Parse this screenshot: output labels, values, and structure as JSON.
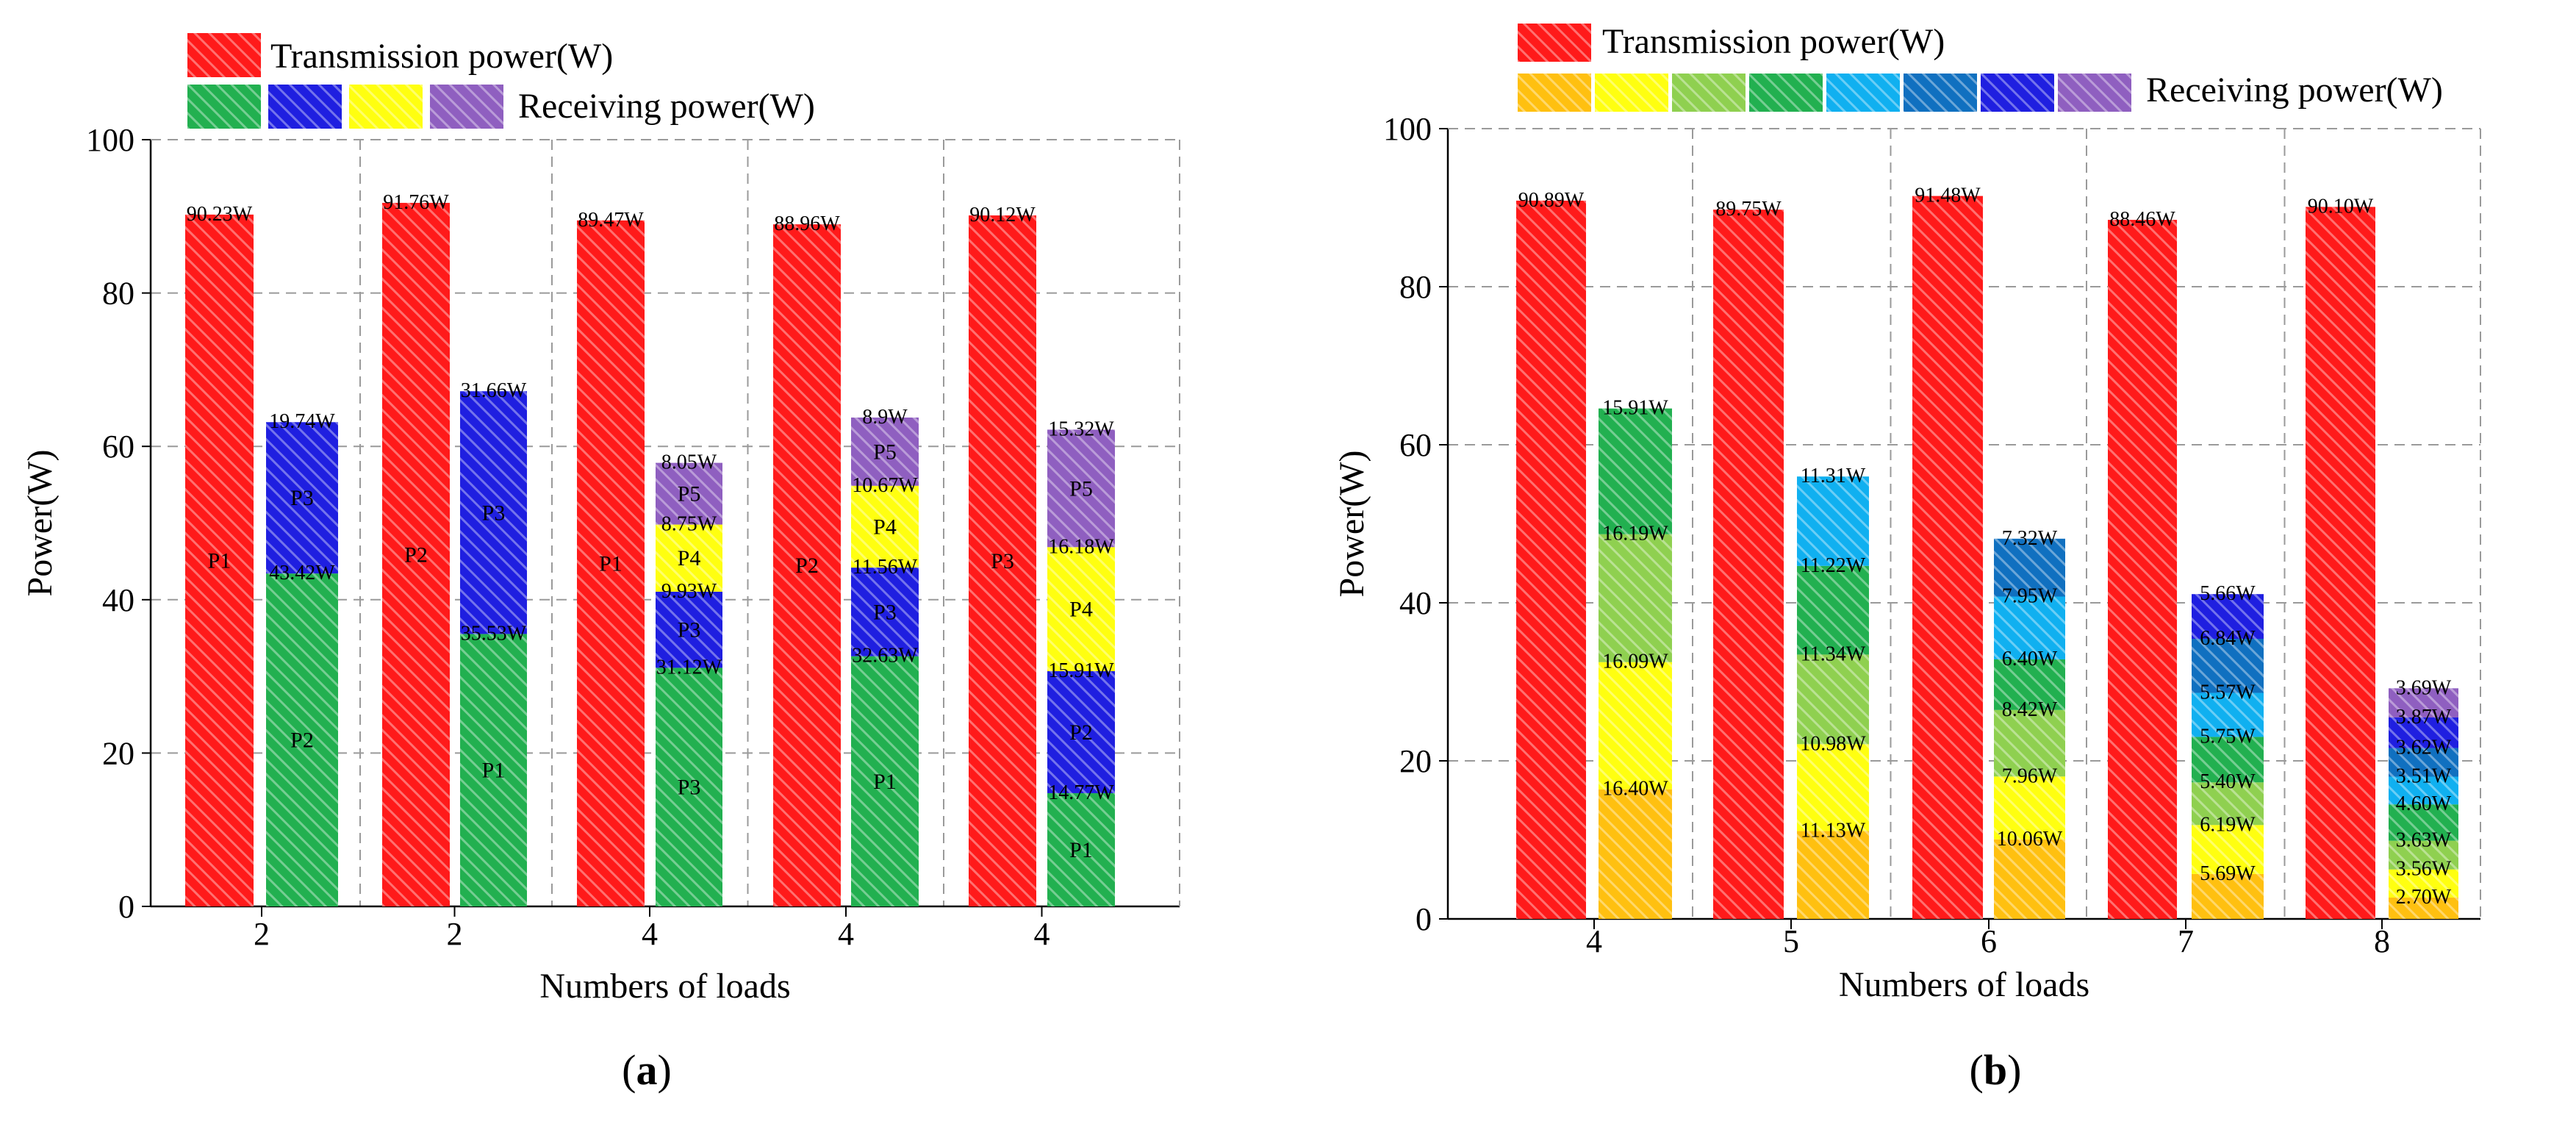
{
  "panels": [
    {
      "caption_letter": "a",
      "legend": {
        "transmission_label": "Transmission power(W)",
        "receiving_label": "Receiving power(W)",
        "receiving_swatch_colors": [
          "#22b050",
          "#1f1fe0",
          "#ffff10",
          "#8f5fc0"
        ]
      }
    },
    {
      "caption_letter": "b",
      "legend": {
        "transmission_label": "Transmission power(W)",
        "receiving_label": "Receiving power(W)",
        "receiving_swatch_colors": [
          "#ffc010",
          "#ffff10",
          "#8fd050",
          "#22b050",
          "#10b0f0",
          "#1070c0",
          "#1f1fe0",
          "#8f5fc0"
        ]
      }
    }
  ],
  "chart_data": [
    {
      "type": "bar",
      "stacked": true,
      "xlabel": "Numbers of loads",
      "ylabel": "Power(W)",
      "ylim": [
        0,
        100
      ],
      "yticks": [
        0,
        20,
        40,
        60,
        80,
        100
      ],
      "grid": true,
      "legend_position": "top-left",
      "categories": [
        "2",
        "2",
        "4",
        "4",
        "4"
      ],
      "transmission": {
        "name": "Transmission power(W)",
        "color": "#ff1a1a",
        "values": [
          90.23,
          91.76,
          89.47,
          88.96,
          90.12
        ],
        "value_labels": [
          "90.23W",
          "91.76W",
          "89.47W",
          "88.96W",
          "90.12W"
        ],
        "inner_labels": [
          "P1",
          "P2",
          "P1",
          "P2",
          "P3"
        ]
      },
      "receiving": [
        {
          "segments": [
            {
              "value": 43.42,
              "label": "43.42W",
              "inner": "P2",
              "color": "#22b050"
            },
            {
              "value": 19.74,
              "label": "19.74W",
              "inner": "P3",
              "color": "#1f1fe0"
            }
          ]
        },
        {
          "segments": [
            {
              "value": 35.53,
              "label": "35.53W",
              "inner": "P1",
              "color": "#22b050"
            },
            {
              "value": 31.66,
              "label": "31.66W",
              "inner": "P3",
              "color": "#1f1fe0"
            }
          ]
        },
        {
          "segments": [
            {
              "value": 31.12,
              "label": "31.12W",
              "inner": "P3",
              "color": "#22b050"
            },
            {
              "value": 9.93,
              "label": "9.93W",
              "inner": "P3",
              "color": "#1f1fe0"
            },
            {
              "value": 8.75,
              "label": "8.75W",
              "inner": "P4",
              "color": "#ffff10"
            },
            {
              "value": 8.05,
              "label": "8.05W",
              "inner": "P5",
              "color": "#8f5fc0"
            }
          ]
        },
        {
          "segments": [
            {
              "value": 32.63,
              "label": "32.63W",
              "inner": "P1",
              "color": "#22b050"
            },
            {
              "value": 11.56,
              "label": "11.56W",
              "inner": "P3",
              "color": "#1f1fe0"
            },
            {
              "value": 10.67,
              "label": "10.67W",
              "inner": "P4",
              "color": "#ffff10"
            },
            {
              "value": 8.9,
              "label": "8.9W",
              "inner": "P5",
              "color": "#8f5fc0"
            }
          ]
        },
        {
          "segments": [
            {
              "value": 14.77,
              "label": "14.77W",
              "inner": "P1",
              "color": "#22b050"
            },
            {
              "value": 15.91,
              "label": "15.91W",
              "inner": "P2",
              "color": "#1f1fe0"
            },
            {
              "value": 16.18,
              "label": "16.18W",
              "inner": "P4",
              "color": "#ffff10"
            },
            {
              "value": 15.32,
              "label": "15.32W",
              "inner": "P5",
              "color": "#8f5fc0"
            }
          ]
        }
      ]
    },
    {
      "type": "bar",
      "stacked": true,
      "xlabel": "Numbers of loads",
      "ylabel": "Power(W)",
      "ylim": [
        0,
        100
      ],
      "yticks": [
        0,
        20,
        40,
        60,
        80,
        100
      ],
      "grid": true,
      "legend_position": "top",
      "categories": [
        "4",
        "5",
        "6",
        "7",
        "8"
      ],
      "transmission": {
        "name": "Transmission power(W)",
        "color": "#ff1a1a",
        "values": [
          90.89,
          89.75,
          91.48,
          88.46,
          90.1
        ],
        "value_labels": [
          "90.89W",
          "89.75W",
          "91.48W",
          "88.46W",
          "90.10W"
        ],
        "inner_labels": [
          "",
          "",
          "",
          "",
          ""
        ]
      },
      "receiving": [
        {
          "segments": [
            {
              "value": 16.4,
              "label": "16.40W",
              "inner": "",
              "color": "#ffc010"
            },
            {
              "value": 16.09,
              "label": "16.09W",
              "inner": "",
              "color": "#ffff10"
            },
            {
              "value": 16.19,
              "label": "16.19W",
              "inner": "",
              "color": "#8fd050"
            },
            {
              "value": 15.91,
              "label": "15.91W",
              "inner": "",
              "color": "#22b050"
            }
          ]
        },
        {
          "segments": [
            {
              "value": 11.13,
              "label": "11.13W",
              "inner": "",
              "color": "#ffc010"
            },
            {
              "value": 10.98,
              "label": "10.98W",
              "inner": "",
              "color": "#ffff10"
            },
            {
              "value": 11.34,
              "label": "11.34W",
              "inner": "",
              "color": "#8fd050"
            },
            {
              "value": 11.22,
              "label": "11.22W",
              "inner": "",
              "color": "#22b050"
            },
            {
              "value": 11.31,
              "label": "11.31W",
              "inner": "",
              "color": "#10b0f0"
            }
          ]
        },
        {
          "segments": [
            {
              "value": 10.06,
              "label": "10.06W",
              "inner": "",
              "color": "#ffc010"
            },
            {
              "value": 7.96,
              "label": "7.96W",
              "inner": "",
              "color": "#ffff10"
            },
            {
              "value": 8.42,
              "label": "8.42W",
              "inner": "",
              "color": "#8fd050"
            },
            {
              "value": 6.4,
              "label": "6.40W",
              "inner": "",
              "color": "#22b050"
            },
            {
              "value": 7.95,
              "label": "7.95W",
              "inner": "",
              "color": "#10b0f0"
            },
            {
              "value": 7.32,
              "label": "7.32W",
              "inner": "",
              "color": "#1070c0"
            }
          ]
        },
        {
          "segments": [
            {
              "value": 5.69,
              "label": "5.69W",
              "inner": "",
              "color": "#ffc010"
            },
            {
              "value": 6.19,
              "label": "6.19W",
              "inner": "",
              "color": "#ffff10"
            },
            {
              "value": 5.4,
              "label": "5.40W",
              "inner": "",
              "color": "#8fd050"
            },
            {
              "value": 5.75,
              "label": "5.75W",
              "inner": "",
              "color": "#22b050"
            },
            {
              "value": 5.57,
              "label": "5.57W",
              "inner": "",
              "color": "#10b0f0"
            },
            {
              "value": 6.84,
              "label": "6.84W",
              "inner": "",
              "color": "#1070c0"
            },
            {
              "value": 5.66,
              "label": "5.66W",
              "inner": "",
              "color": "#1f1fe0"
            }
          ]
        },
        {
          "segments": [
            {
              "value": 2.7,
              "label": "2.70W",
              "inner": "",
              "color": "#ffc010"
            },
            {
              "value": 3.56,
              "label": "3.56W",
              "inner": "",
              "color": "#ffff10"
            },
            {
              "value": 3.63,
              "label": "3.63W",
              "inner": "",
              "color": "#8fd050"
            },
            {
              "value": 4.6,
              "label": "4.60W",
              "inner": "",
              "color": "#22b050"
            },
            {
              "value": 3.51,
              "label": "3.51W",
              "inner": "",
              "color": "#10b0f0"
            },
            {
              "value": 3.62,
              "label": "3.62W",
              "inner": "",
              "color": "#1070c0"
            },
            {
              "value": 3.87,
              "label": "3.87W",
              "inner": "",
              "color": "#1f1fe0"
            },
            {
              "value": 3.69,
              "label": "3.69W",
              "inner": "",
              "color": "#8f5fc0"
            }
          ]
        }
      ]
    }
  ]
}
